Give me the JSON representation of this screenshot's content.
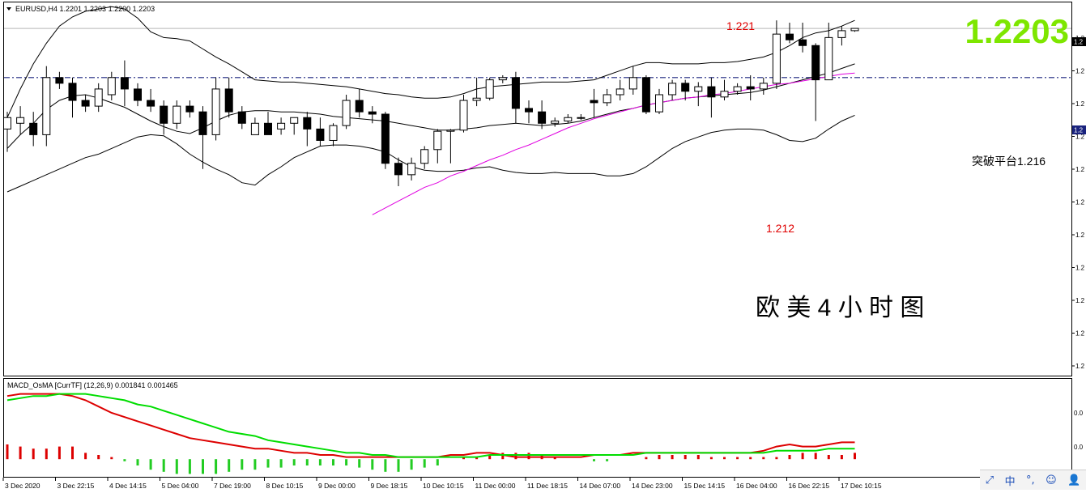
{
  "window": {
    "symbol_line": "EURUSD,H4  1.2201 1.2203 1.2200 1.2203",
    "big_price": "1.2203",
    "big_price_color": "#7ee600",
    "big_price_box": "1.2",
    "level_box": "1.2",
    "ime_items": [
      "中",
      "°,",
      "☺",
      "👤"
    ]
  },
  "chart_data": [
    {
      "type": "candlestick",
      "title": "欧 美 4 小 时 图",
      "annotations": [
        {
          "text": "1.221",
          "color": "#e00000"
        },
        {
          "text": "1.212",
          "color": "#e00000"
        },
        {
          "text": "突破平台1.216",
          "color": "#000000"
        }
      ],
      "price_axis_labels": [
        "1.2",
        "1.2",
        "1.2",
        "1.2",
        "1.2",
        "1.2",
        "1.2",
        "1.2",
        "1.2",
        "1.2",
        "1.2"
      ],
      "ylim": [
        1.19,
        1.2225
      ],
      "horizontal_level": 1.216,
      "bid_line": 1.2203,
      "x_labels": [
        "3 Dec 2020",
        "3 Dec 22:15",
        "4 Dec 14:15",
        "5 Dec 04:00",
        "7 Dec 19:00",
        "8 Dec 10:15",
        "9 Dec 00:00",
        "9 Dec 18:15",
        "10 Dec 10:15",
        "11 Dec 00:00",
        "11 Dec 18:15",
        "14 Dec 07:00",
        "14 Dec 23:00",
        "15 Dec 14:15",
        "16 Dec 04:00",
        "16 Dec 22:15",
        "17 Dec 10:15"
      ],
      "candles": [
        {
          "o": 1.2115,
          "h": 1.213,
          "l": 1.2095,
          "c": 1.2125
        },
        {
          "o": 1.212,
          "h": 1.2135,
          "l": 1.211,
          "c": 1.2125
        },
        {
          "o": 1.212,
          "h": 1.213,
          "l": 1.21,
          "c": 1.211
        },
        {
          "o": 1.211,
          "h": 1.217,
          "l": 1.21,
          "c": 1.216
        },
        {
          "o": 1.216,
          "h": 1.2165,
          "l": 1.215,
          "c": 1.2155
        },
        {
          "o": 1.2155,
          "h": 1.216,
          "l": 1.2125,
          "c": 1.214
        },
        {
          "o": 1.214,
          "h": 1.2145,
          "l": 1.213,
          "c": 1.2135
        },
        {
          "o": 1.2135,
          "h": 1.2155,
          "l": 1.213,
          "c": 1.215
        },
        {
          "o": 1.2145,
          "h": 1.2165,
          "l": 1.214,
          "c": 1.216
        },
        {
          "o": 1.216,
          "h": 1.2175,
          "l": 1.2135,
          "c": 1.215
        },
        {
          "o": 1.215,
          "h": 1.2155,
          "l": 1.2135,
          "c": 1.214
        },
        {
          "o": 1.214,
          "h": 1.215,
          "l": 1.213,
          "c": 1.2135
        },
        {
          "o": 1.2135,
          "h": 1.214,
          "l": 1.211,
          "c": 1.212
        },
        {
          "o": 1.212,
          "h": 1.214,
          "l": 1.2115,
          "c": 1.2135
        },
        {
          "o": 1.2135,
          "h": 1.214,
          "l": 1.2125,
          "c": 1.213
        },
        {
          "o": 1.213,
          "h": 1.2135,
          "l": 1.208,
          "c": 1.211
        },
        {
          "o": 1.211,
          "h": 1.216,
          "l": 1.2105,
          "c": 1.215
        },
        {
          "o": 1.215,
          "h": 1.216,
          "l": 1.2125,
          "c": 1.213
        },
        {
          "o": 1.213,
          "h": 1.2135,
          "l": 1.2115,
          "c": 1.212
        },
        {
          "o": 1.211,
          "h": 1.2125,
          "l": 1.211,
          "c": 1.212
        },
        {
          "o": 1.212,
          "h": 1.213,
          "l": 1.211,
          "c": 1.211
        },
        {
          "o": 1.2115,
          "h": 1.2125,
          "l": 1.211,
          "c": 1.212
        },
        {
          "o": 1.212,
          "h": 1.2125,
          "l": 1.211,
          "c": 1.2125
        },
        {
          "o": 1.2125,
          "h": 1.213,
          "l": 1.21,
          "c": 1.2115
        },
        {
          "o": 1.2115,
          "h": 1.2125,
          "l": 1.21,
          "c": 1.2105
        },
        {
          "o": 1.2105,
          "h": 1.212,
          "l": 1.21,
          "c": 1.2118
        },
        {
          "o": 1.2118,
          "h": 1.2145,
          "l": 1.2115,
          "c": 1.214
        },
        {
          "o": 1.214,
          "h": 1.215,
          "l": 1.2125,
          "c": 1.213
        },
        {
          "o": 1.213,
          "h": 1.2135,
          "l": 1.212,
          "c": 1.2128
        },
        {
          "o": 1.2128,
          "h": 1.213,
          "l": 1.208,
          "c": 1.2085
        },
        {
          "o": 1.2085,
          "h": 1.209,
          "l": 1.2065,
          "c": 1.2075
        },
        {
          "o": 1.2075,
          "h": 1.209,
          "l": 1.207,
          "c": 1.2085
        },
        {
          "o": 1.2085,
          "h": 1.21,
          "l": 1.208,
          "c": 1.2097
        },
        {
          "o": 1.2097,
          "h": 1.2115,
          "l": 1.2085,
          "c": 1.2113
        },
        {
          "o": 1.2113,
          "h": 1.2115,
          "l": 1.2085,
          "c": 1.2114
        },
        {
          "o": 1.2114,
          "h": 1.2145,
          "l": 1.2112,
          "c": 1.214
        },
        {
          "o": 1.214,
          "h": 1.216,
          "l": 1.2135,
          "c": 1.2142
        },
        {
          "o": 1.2142,
          "h": 1.216,
          "l": 1.214,
          "c": 1.2158
        },
        {
          "o": 1.2158,
          "h": 1.2162,
          "l": 1.2155,
          "c": 1.216
        },
        {
          "o": 1.216,
          "h": 1.2165,
          "l": 1.212,
          "c": 1.2133
        },
        {
          "o": 1.2133,
          "h": 1.214,
          "l": 1.212,
          "c": 1.213
        },
        {
          "o": 1.213,
          "h": 1.214,
          "l": 1.2115,
          "c": 1.212
        },
        {
          "o": 1.212,
          "h": 1.2125,
          "l": 1.2117,
          "c": 1.2122
        },
        {
          "o": 1.2122,
          "h": 1.2128,
          "l": 1.212,
          "c": 1.2125
        },
        {
          "o": 1.2125,
          "h": 1.2128,
          "l": 1.2123,
          "c": 1.2125
        },
        {
          "o": 1.214,
          "h": 1.215,
          "l": 1.2125,
          "c": 1.2138
        },
        {
          "o": 1.2138,
          "h": 1.215,
          "l": 1.2135,
          "c": 1.2145
        },
        {
          "o": 1.2145,
          "h": 1.2158,
          "l": 1.214,
          "c": 1.215
        },
        {
          "o": 1.215,
          "h": 1.217,
          "l": 1.2145,
          "c": 1.216
        },
        {
          "o": 1.216,
          "h": 1.2162,
          "l": 1.2128,
          "c": 1.213
        },
        {
          "o": 1.213,
          "h": 1.215,
          "l": 1.2128,
          "c": 1.2145
        },
        {
          "o": 1.2145,
          "h": 1.2158,
          "l": 1.214,
          "c": 1.2155
        },
        {
          "o": 1.2155,
          "h": 1.2158,
          "l": 1.214,
          "c": 1.2148
        },
        {
          "o": 1.2148,
          "h": 1.2156,
          "l": 1.2135,
          "c": 1.2152
        },
        {
          "o": 1.2152,
          "h": 1.216,
          "l": 1.2125,
          "c": 1.2143
        },
        {
          "o": 1.2143,
          "h": 1.2158,
          "l": 1.214,
          "c": 1.2148
        },
        {
          "o": 1.2148,
          "h": 1.2155,
          "l": 1.2145,
          "c": 1.2152
        },
        {
          "o": 1.2152,
          "h": 1.2162,
          "l": 1.214,
          "c": 1.215
        },
        {
          "o": 1.215,
          "h": 1.216,
          "l": 1.2145,
          "c": 1.2155
        },
        {
          "o": 1.2155,
          "h": 1.221,
          "l": 1.215,
          "c": 1.2198
        },
        {
          "o": 1.2198,
          "h": 1.2208,
          "l": 1.219,
          "c": 1.2193
        },
        {
          "o": 1.2193,
          "h": 1.2208,
          "l": 1.2182,
          "c": 1.2188
        },
        {
          "o": 1.2188,
          "h": 1.219,
          "l": 1.2122,
          "c": 1.2158
        },
        {
          "o": 1.2158,
          "h": 1.2208,
          "l": 1.2158,
          "c": 1.2195
        },
        {
          "o": 1.2195,
          "h": 1.2205,
          "l": 1.2188,
          "c": 1.2201
        },
        {
          "o": 1.2201,
          "h": 1.2203,
          "l": 1.22,
          "c": 1.2203
        }
      ],
      "bollinger_upper": [
        1.2125,
        1.215,
        1.2172,
        1.219,
        1.2205,
        1.2213,
        1.2218,
        1.222,
        1.2222,
        1.222,
        1.2212,
        1.22,
        1.2195,
        1.2194,
        1.2192,
        1.2185,
        1.2178,
        1.2172,
        1.2165,
        1.2158,
        1.2157,
        1.2156,
        1.2156,
        1.2155,
        1.2154,
        1.2153,
        1.2152,
        1.215,
        1.2148,
        1.2146,
        1.2145,
        1.2143,
        1.2142,
        1.2142,
        1.2143,
        1.2146,
        1.215,
        1.2152,
        1.2153,
        1.2154,
        1.2155,
        1.2156,
        1.2156,
        1.2156,
        1.2157,
        1.2158,
        1.2162,
        1.2166,
        1.217,
        1.2173,
        1.2173,
        1.2172,
        1.2172,
        1.2172,
        1.2173,
        1.2173,
        1.2174,
        1.2176,
        1.2178,
        1.2182,
        1.2188,
        1.2195,
        1.2199,
        1.2201,
        1.2205,
        1.221
      ],
      "bollinger_middle": [
        1.2098,
        1.211,
        1.212,
        1.2132,
        1.214,
        1.2144,
        1.2145,
        1.2142,
        1.2138,
        1.2134,
        1.2128,
        1.2122,
        1.2117,
        1.2113,
        1.2111,
        1.2116,
        1.2122,
        1.2127,
        1.213,
        1.2131,
        1.2131,
        1.213,
        1.213,
        1.2129,
        1.2128,
        1.2126,
        1.2125,
        1.2124,
        1.2123,
        1.2122,
        1.212,
        1.2118,
        1.2116,
        1.2114,
        1.2114,
        1.2115,
        1.2116,
        1.2118,
        1.2119,
        1.212,
        1.2119,
        1.2118,
        1.2119,
        1.212,
        1.2122,
        1.2125,
        1.2128,
        1.2131,
        1.2133,
        1.2136,
        1.2138,
        1.214,
        1.2142,
        1.2143,
        1.2144,
        1.2145,
        1.2146,
        1.2147,
        1.2149,
        1.2152,
        1.2155,
        1.2158,
        1.2161,
        1.2164,
        1.2168,
        1.2172
      ],
      "bollinger_lower": [
        1.206,
        1.2065,
        1.207,
        1.2075,
        1.208,
        1.2085,
        1.209,
        1.2093,
        1.2098,
        1.2103,
        1.2108,
        1.211,
        1.2109,
        1.2102,
        1.2093,
        1.2086,
        1.208,
        1.2075,
        1.2068,
        1.2066,
        1.2075,
        1.2082,
        1.209,
        1.2095,
        1.21,
        1.2101,
        1.2101,
        1.21,
        1.2098,
        1.2095,
        1.2088,
        1.2082,
        1.2079,
        1.2078,
        1.2078,
        1.2079,
        1.2081,
        1.2082,
        1.2079,
        1.2077,
        1.2076,
        1.2076,
        1.2077,
        1.2076,
        1.2076,
        1.2076,
        1.2074,
        1.2074,
        1.2076,
        1.2082,
        1.209,
        1.2098,
        1.2104,
        1.2108,
        1.2112,
        1.2114,
        1.2115,
        1.2115,
        1.2114,
        1.211,
        1.2105,
        1.2104,
        1.2107,
        1.2115,
        1.2122,
        1.2127
      ],
      "ma_magenta": [
        1.204,
        1.2046,
        1.2052,
        1.2058,
        1.2064,
        1.2068,
        1.2074,
        1.2078,
        1.2083,
        1.2088,
        1.2092,
        1.2097,
        1.2101,
        1.2106,
        1.2111,
        1.2116,
        1.212,
        1.2124,
        1.2127,
        1.213,
        1.2133,
        1.2136,
        1.2138,
        1.214,
        1.2142,
        1.2143,
        1.2145,
        1.2146,
        1.2148,
        1.215,
        1.2152,
        1.2154,
        1.2155,
        1.2157,
        1.2159,
        1.2161,
        1.2163,
        1.2164
      ],
      "ma_magenta_start_index": 28
    },
    {
      "type": "line+bar",
      "title": "MACD_OsMA [CurrTF] (12,26,9) 0.001841 0.001465",
      "price_axis_labels": [
        "0.0",
        "0.0"
      ],
      "ylim": [
        -0.0008,
        0.0032
      ],
      "series": [
        {
          "name": "",
          "color": "#dd0000",
          "values": [
            0.003,
            0.0031,
            0.0031,
            0.0031,
            0.0031,
            0.003,
            0.0028,
            0.0025,
            0.0022,
            0.002,
            0.0018,
            0.0016,
            0.0014,
            0.0012,
            0.001,
            0.0009,
            0.0008,
            0.0007,
            0.0006,
            0.0005,
            0.0005,
            0.0004,
            0.0003,
            0.0003,
            0.0002,
            0.0002,
            0.0001,
            0.0001,
            0.0001,
            0.0001,
            0.0001,
            0.0001,
            0.0001,
            0.0001,
            0.0002,
            0.0002,
            0.0003,
            0.0003,
            0.0002,
            0.0001,
            0.0001,
            0.0001,
            0.0001,
            0.0001,
            0.0001,
            0.0002,
            0.0002,
            0.0002,
            0.0003,
            0.0003,
            0.0003,
            0.0003,
            0.0003,
            0.0003,
            0.0003,
            0.0003,
            0.0003,
            0.0003,
            0.0004,
            0.0006,
            0.0007,
            0.0006,
            0.0006,
            0.0007,
            0.0008,
            0.0008
          ]
        },
        {
          "name": "",
          "color": "#00dd00",
          "values": [
            0.0028,
            0.0029,
            0.003,
            0.003,
            0.0031,
            0.0031,
            0.0031,
            0.003,
            0.0029,
            0.0028,
            0.0026,
            0.0025,
            0.0023,
            0.0021,
            0.0019,
            0.0017,
            0.0015,
            0.0013,
            0.0012,
            0.0011,
            0.0009,
            0.0008,
            0.0007,
            0.0006,
            0.0005,
            0.0004,
            0.0003,
            0.0003,
            0.0002,
            0.0002,
            0.0001,
            0.0001,
            0.0001,
            0.0001,
            0.0001,
            0.0001,
            0.0001,
            0.0002,
            0.0002,
            0.0002,
            0.0002,
            0.0002,
            0.0002,
            0.0002,
            0.0002,
            0.0002,
            0.0002,
            0.0002,
            0.0002,
            0.0003,
            0.0003,
            0.0003,
            0.0003,
            0.0003,
            0.0003,
            0.0003,
            0.0003,
            0.0003,
            0.0003,
            0.0004,
            0.0004,
            0.0004,
            0.0004,
            0.0005,
            0.0005,
            0.0005
          ]
        },
        {
          "name": "",
          "type": "histogram",
          "values": [
            0.0007,
            0.0006,
            0.0005,
            0.0005,
            0.0006,
            0.0006,
            0.0003,
            0.0002,
            0.0001,
            -0.0001,
            -0.0003,
            -0.0005,
            -0.0006,
            -0.0007,
            -0.0007,
            -0.0007,
            -0.0007,
            -0.0006,
            -0.0005,
            -0.0005,
            -0.0004,
            -0.0004,
            -0.0003,
            -0.0003,
            -0.0003,
            -0.0003,
            -0.0003,
            -0.0004,
            -0.0005,
            -0.0006,
            -0.0006,
            -0.0005,
            -0.0004,
            -0.0003,
            0.0,
            0.0001,
            0.0001,
            0.0002,
            0.0003,
            0.0003,
            0.0003,
            0.0002,
            0.0001,
            0.0,
            0.0,
            -0.0001,
            -0.0001,
            0.0,
            0.0,
            0.0001,
            0.0002,
            0.0002,
            0.0002,
            0.0002,
            0.0001,
            0.0001,
            0.0001,
            0.0001,
            0.0001,
            0.0001,
            0.0002,
            0.0003,
            0.0003,
            0.0002,
            0.0002,
            0.0003
          ]
        }
      ]
    }
  ]
}
